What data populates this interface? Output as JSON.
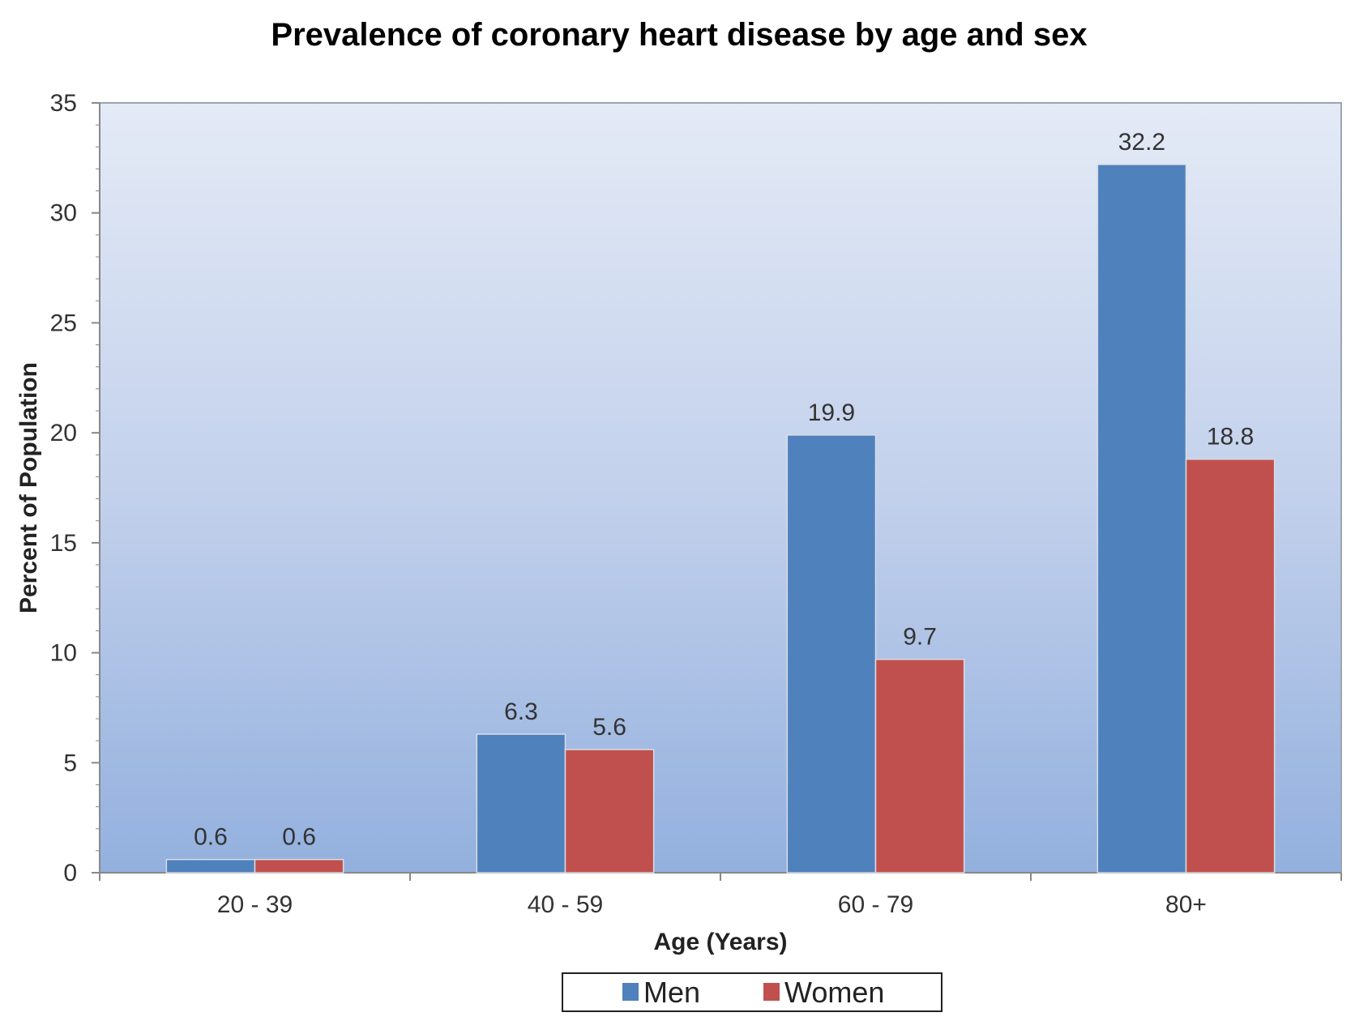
{
  "chart_data": {
    "type": "bar",
    "title": "Prevalence of coronary heart disease by age and sex",
    "xlabel": "Age (Years)",
    "ylabel": "Percent of Population",
    "categories": [
      "20 - 39",
      "40 - 59",
      "60 - 79",
      "80+"
    ],
    "series": [
      {
        "name": "Men",
        "values": [
          0.6,
          6.3,
          19.9,
          32.2
        ],
        "color": "#4f81bd"
      },
      {
        "name": "Women",
        "values": [
          0.6,
          5.6,
          9.7,
          18.8
        ],
        "color": "#c0504d"
      }
    ],
    "data_labels": [
      [
        "0.6",
        "6.3",
        "19.9",
        "32.2"
      ],
      [
        "0.6",
        "5.6",
        "9.7",
        "18.8"
      ]
    ],
    "ylim": [
      0,
      35
    ],
    "yticks": [
      "0",
      "5",
      "10",
      "15",
      "20",
      "25",
      "30",
      "35"
    ],
    "legend_position": "bottom-center",
    "grid": false,
    "background": "blue gradient"
  }
}
